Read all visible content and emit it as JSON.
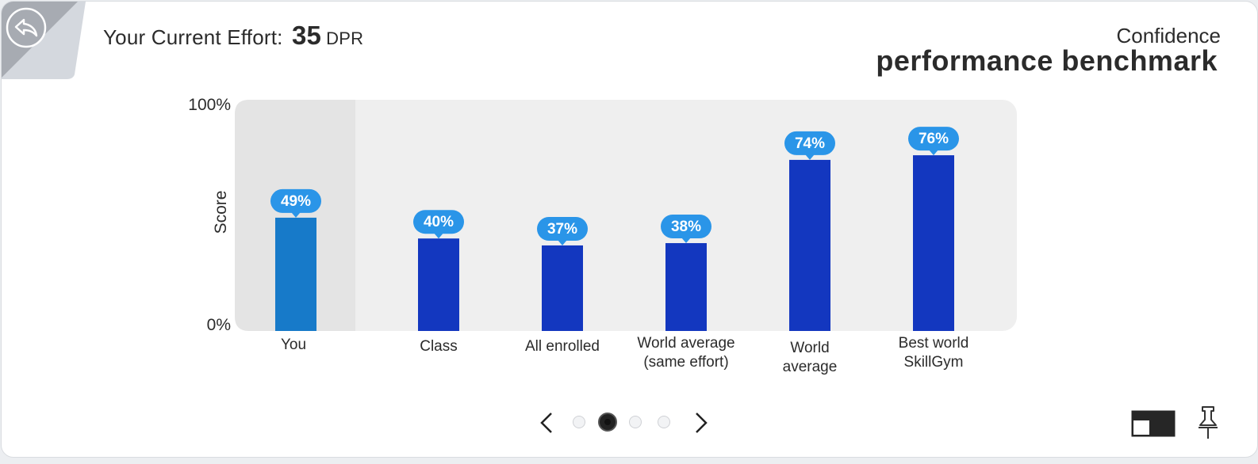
{
  "header": {
    "effort_label": "Your Current Effort:",
    "effort_value": "35",
    "effort_unit": "DPR",
    "category": "Confidence",
    "benchmark_title": "performance benchmark"
  },
  "icons": {
    "back": "back-arrow-icon",
    "prev": "chevron-left-icon",
    "next": "chevron-right-icon",
    "layout": "layout-toggle-icon",
    "pin": "pushpin-icon"
  },
  "chart_data": {
    "type": "bar",
    "ylabel": "Score",
    "ylim": [
      0,
      100
    ],
    "yticks": [
      "0%",
      "100%"
    ],
    "categories": [
      "You",
      "Class",
      "All enrolled",
      "World average\n(same effort)",
      "World\naverage",
      "Best world\nSkillGym"
    ],
    "values": [
      49,
      40,
      37,
      38,
      74,
      76
    ],
    "value_labels": [
      "49%",
      "40%",
      "37%",
      "38%",
      "74%",
      "76%"
    ],
    "highlight_index": 0,
    "colors": {
      "highlight": "#177ac9",
      "bar": "#1337bf",
      "badge": "#2a95e8",
      "plot_bg": "#efefef",
      "highlight_bg": "#e4e4e4"
    }
  },
  "pager": {
    "pages": 4,
    "active": 1
  }
}
